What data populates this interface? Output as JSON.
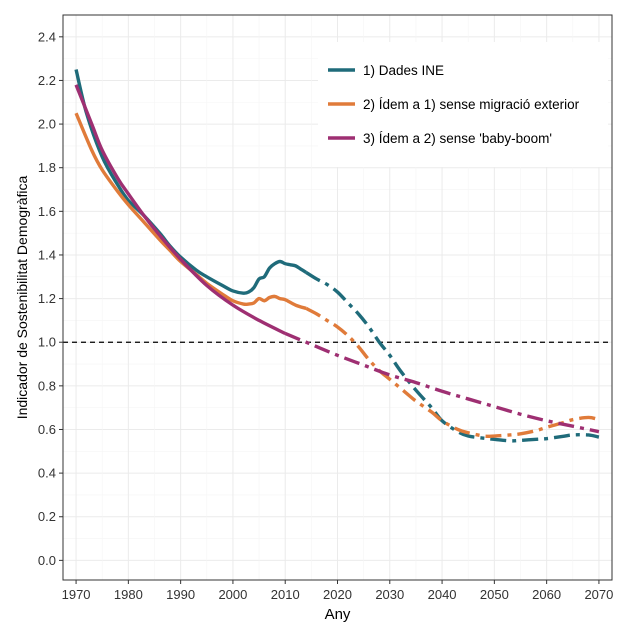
{
  "chart_data": {
    "type": "line",
    "title": "",
    "xlabel": "Any",
    "ylabel": "Indicador de Sostenibilitat Demogràfica",
    "xlim": [
      1967.5,
      2072.5
    ],
    "ylim": [
      -0.09,
      2.5
    ],
    "x_ticks": [
      1970,
      1980,
      1990,
      2000,
      2010,
      2020,
      2030,
      2040,
      2050,
      2060,
      2070
    ],
    "y_ticks": [
      0.0,
      0.2,
      0.4,
      0.6,
      0.8,
      1.0,
      1.2,
      1.4,
      1.6,
      1.8,
      2.0,
      2.2,
      2.4
    ],
    "y_tick_labels": [
      "0.0",
      "0.2",
      "0.4",
      "0.6",
      "0.8",
      "1.0",
      "1.2",
      "1.4",
      "1.6",
      "1.8",
      "2.0",
      "2.2",
      "2.4"
    ],
    "grid": true,
    "legend_position": "top-right",
    "reference_line": {
      "y": 1.0,
      "style": "dashed",
      "color": "#000000"
    },
    "series": [
      {
        "name": "1) Dades INE",
        "color": "#1f6b7a",
        "solid_until": 2014,
        "x": [
          1970,
          1972,
          1975,
          1978,
          1980,
          1983,
          1986,
          1988,
          1990,
          1993,
          1995,
          1998,
          2000,
          2002,
          2003,
          2004,
          2005,
          2006,
          2007,
          2008,
          2009,
          2010,
          2011,
          2012,
          2013,
          2014,
          2016,
          2018,
          2020,
          2022,
          2024,
          2026,
          2028,
          2030,
          2032,
          2035,
          2038,
          2040,
          2043,
          2045,
          2048,
          2050,
          2053,
          2055,
          2058,
          2060,
          2063,
          2065,
          2068,
          2070
        ],
        "y": [
          2.25,
          2.05,
          1.85,
          1.72,
          1.65,
          1.58,
          1.5,
          1.44,
          1.39,
          1.33,
          1.3,
          1.26,
          1.235,
          1.225,
          1.23,
          1.25,
          1.29,
          1.3,
          1.34,
          1.36,
          1.37,
          1.36,
          1.355,
          1.35,
          1.335,
          1.32,
          1.29,
          1.265,
          1.23,
          1.18,
          1.13,
          1.07,
          1.0,
          0.94,
          0.87,
          0.78,
          0.7,
          0.64,
          0.59,
          0.57,
          0.56,
          0.555,
          0.548,
          0.55,
          0.555,
          0.558,
          0.568,
          0.575,
          0.575,
          0.565
        ]
      },
      {
        "name": "2) Ídem a 1) sense migració exterior",
        "color": "#e07b3a",
        "solid_until": 2014,
        "x": [
          1970,
          1973,
          1975,
          1978,
          1980,
          1983,
          1986,
          1988,
          1990,
          1993,
          1995,
          1998,
          2000,
          2002,
          2003,
          2004,
          2005,
          2006,
          2007,
          2008,
          2009,
          2010,
          2012,
          2014,
          2016,
          2018,
          2020,
          2022,
          2024,
          2026,
          2028,
          2030,
          2033,
          2035,
          2038,
          2040,
          2043,
          2045,
          2048,
          2050,
          2053,
          2055,
          2058,
          2060,
          2063,
          2065,
          2068,
          2070
        ],
        "y": [
          2.05,
          1.88,
          1.79,
          1.69,
          1.63,
          1.55,
          1.47,
          1.42,
          1.37,
          1.31,
          1.27,
          1.22,
          1.19,
          1.175,
          1.175,
          1.18,
          1.2,
          1.19,
          1.205,
          1.21,
          1.2,
          1.195,
          1.17,
          1.155,
          1.13,
          1.1,
          1.07,
          1.03,
          0.98,
          0.92,
          0.87,
          0.83,
          0.77,
          0.73,
          0.68,
          0.64,
          0.6,
          0.585,
          0.57,
          0.57,
          0.575,
          0.58,
          0.595,
          0.61,
          0.63,
          0.645,
          0.655,
          0.645
        ]
      },
      {
        "name": "3) Ídem a 2) sense 'baby-boom'",
        "color": "#9e2f72",
        "solid_until": 2014,
        "x": [
          1970,
          1973,
          1975,
          1978,
          1980,
          1983,
          1986,
          1990,
          1995,
          2000,
          2005,
          2010,
          2015,
          2020,
          2025,
          2030,
          2035,
          2040,
          2045,
          2050,
          2055,
          2060,
          2065,
          2070
        ],
        "y": [
          2.18,
          2.0,
          1.88,
          1.75,
          1.68,
          1.58,
          1.49,
          1.38,
          1.26,
          1.17,
          1.1,
          1.04,
          0.99,
          0.94,
          0.895,
          0.85,
          0.815,
          0.775,
          0.74,
          0.705,
          0.67,
          0.64,
          0.615,
          0.59
        ]
      }
    ]
  }
}
